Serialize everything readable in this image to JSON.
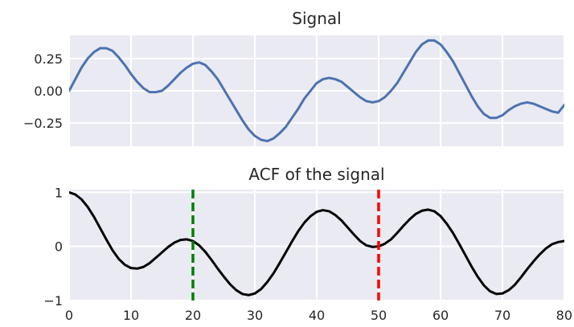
{
  "chart_data": [
    {
      "type": "line",
      "title": "Signal",
      "xlabel": "",
      "ylabel": "",
      "xlim": [
        0,
        80
      ],
      "ylim": [
        -0.43,
        0.43
      ],
      "xticks": [
        0,
        10,
        20,
        30,
        40,
        50,
        60,
        70,
        80
      ],
      "yticks": [
        -0.25,
        0.0,
        0.25
      ],
      "ytick_labels": [
        "−0.25",
        "0.00",
        "0.25"
      ],
      "show_xtick_labels": false,
      "grid": true,
      "series": [
        {
          "color": "#4c72b0",
          "x": [
            0,
            1,
            2,
            3,
            4,
            5,
            6,
            7,
            8,
            9,
            10,
            11,
            12,
            13,
            14,
            15,
            16,
            17,
            18,
            19,
            20,
            21,
            22,
            23,
            24,
            25,
            26,
            27,
            28,
            29,
            30,
            31,
            32,
            33,
            34,
            35,
            36,
            37,
            38,
            39,
            40,
            41,
            42,
            43,
            44,
            45,
            46,
            47,
            48,
            49,
            50,
            51,
            52,
            53,
            54,
            55,
            56,
            57,
            58,
            59,
            60,
            61,
            62,
            63,
            64,
            65,
            66,
            67,
            68,
            69,
            70,
            71,
            72,
            73,
            74,
            75,
            76,
            77,
            78,
            79,
            80
          ],
          "y": [
            0.0,
            0.09,
            0.18,
            0.25,
            0.3,
            0.33,
            0.33,
            0.31,
            0.26,
            0.2,
            0.13,
            0.07,
            0.02,
            -0.01,
            -0.01,
            0.0,
            0.04,
            0.09,
            0.14,
            0.18,
            0.21,
            0.22,
            0.2,
            0.15,
            0.09,
            0.01,
            -0.07,
            -0.15,
            -0.23,
            -0.3,
            -0.35,
            -0.38,
            -0.39,
            -0.37,
            -0.33,
            -0.28,
            -0.21,
            -0.14,
            -0.06,
            0.0,
            0.06,
            0.09,
            0.1,
            0.09,
            0.07,
            0.03,
            -0.01,
            -0.05,
            -0.08,
            -0.09,
            -0.08,
            -0.05,
            0.0,
            0.06,
            0.14,
            0.22,
            0.3,
            0.36,
            0.39,
            0.39,
            0.36,
            0.3,
            0.23,
            0.14,
            0.05,
            -0.04,
            -0.12,
            -0.18,
            -0.21,
            -0.21,
            -0.19,
            -0.15,
            -0.12,
            -0.1,
            -0.09,
            -0.1,
            -0.12,
            -0.14,
            -0.16,
            -0.17,
            -0.11
          ]
        }
      ]
    },
    {
      "type": "line",
      "title": "ACF of the signal",
      "xlabel": "",
      "ylabel": "",
      "xlim": [
        0,
        80
      ],
      "ylim": [
        -1,
        1.05
      ],
      "xticks": [
        0,
        10,
        20,
        30,
        40,
        50,
        60,
        70,
        80
      ],
      "xtick_labels": [
        "0",
        "10",
        "20",
        "30",
        "40",
        "50",
        "60",
        "70",
        "80"
      ],
      "yticks": [
        -1,
        0,
        1
      ],
      "ytick_labels": [
        "−1",
        "0",
        "1"
      ],
      "grid": true,
      "series": [
        {
          "color": "#000000",
          "x": [
            0,
            1,
            2,
            3,
            4,
            5,
            6,
            7,
            8,
            9,
            10,
            11,
            12,
            13,
            14,
            15,
            16,
            17,
            18,
            19,
            20,
            21,
            22,
            23,
            24,
            25,
            26,
            27,
            28,
            29,
            30,
            31,
            32,
            33,
            34,
            35,
            36,
            37,
            38,
            39,
            40,
            41,
            42,
            43,
            44,
            45,
            46,
            47,
            48,
            49,
            50,
            51,
            52,
            53,
            54,
            55,
            56,
            57,
            58,
            59,
            60,
            61,
            62,
            63,
            64,
            65,
            66,
            67,
            68,
            69,
            70,
            71,
            72,
            73,
            74,
            75,
            76,
            77,
            78,
            79,
            80
          ],
          "y": [
            1.0,
            0.96,
            0.87,
            0.73,
            0.55,
            0.34,
            0.13,
            -0.07,
            -0.23,
            -0.34,
            -0.4,
            -0.41,
            -0.38,
            -0.31,
            -0.21,
            -0.11,
            -0.01,
            0.07,
            0.12,
            0.13,
            0.1,
            0.02,
            -0.1,
            -0.25,
            -0.41,
            -0.56,
            -0.7,
            -0.81,
            -0.88,
            -0.9,
            -0.87,
            -0.79,
            -0.66,
            -0.5,
            -0.31,
            -0.11,
            0.09,
            0.28,
            0.44,
            0.56,
            0.64,
            0.67,
            0.65,
            0.58,
            0.48,
            0.35,
            0.22,
            0.1,
            0.02,
            -0.01,
            0.0,
            0.05,
            0.13,
            0.25,
            0.38,
            0.5,
            0.6,
            0.66,
            0.68,
            0.65,
            0.56,
            0.42,
            0.25,
            0.05,
            -0.16,
            -0.37,
            -0.56,
            -0.72,
            -0.83,
            -0.88,
            -0.87,
            -0.81,
            -0.71,
            -0.57,
            -0.42,
            -0.28,
            -0.15,
            -0.04,
            0.04,
            0.08,
            0.1
          ]
        }
      ],
      "reference_lines": [
        {
          "x": 20,
          "color": "#008000",
          "style": "dashed"
        },
        {
          "x": 50,
          "color": "#ff0000",
          "style": "dashed"
        }
      ]
    }
  ]
}
